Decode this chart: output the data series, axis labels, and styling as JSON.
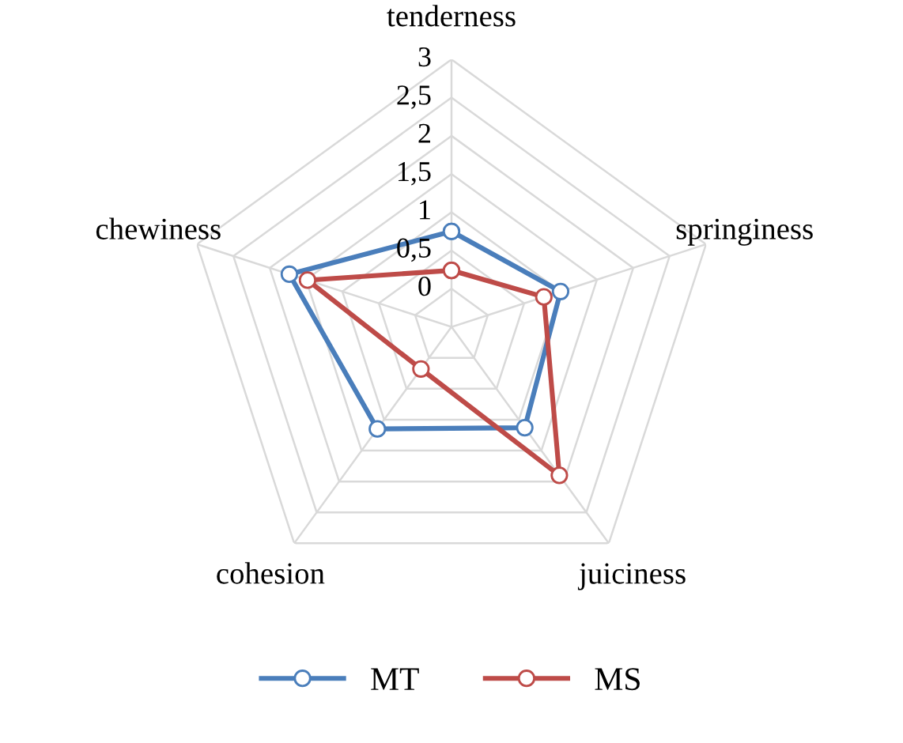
{
  "chart_data": {
    "type": "radar",
    "categories": [
      "tenderness",
      "springiness",
      "juiciness",
      "cohesion",
      "chewiness"
    ],
    "series": [
      {
        "name": "MT",
        "color": "#4a7ebb",
        "values": [
          0.75,
          1.0,
          1.13,
          1.15,
          1.73
        ]
      },
      {
        "name": "MS",
        "color": "#be4b48",
        "values": [
          0.24,
          0.77,
          1.9,
          0.18,
          1.48
        ]
      }
    ],
    "ylim": [
      -0.5,
      3
    ],
    "yticks": [
      0,
      {
        "value": 0.5,
        "label": "0,5"
      },
      1,
      {
        "value": 1.5,
        "label": "1,5"
      },
      2,
      {
        "value": 2.5,
        "label": "2,5"
      },
      3
    ],
    "grid": true,
    "legend": "bottom",
    "marker": "circle",
    "line_style": "solid"
  }
}
